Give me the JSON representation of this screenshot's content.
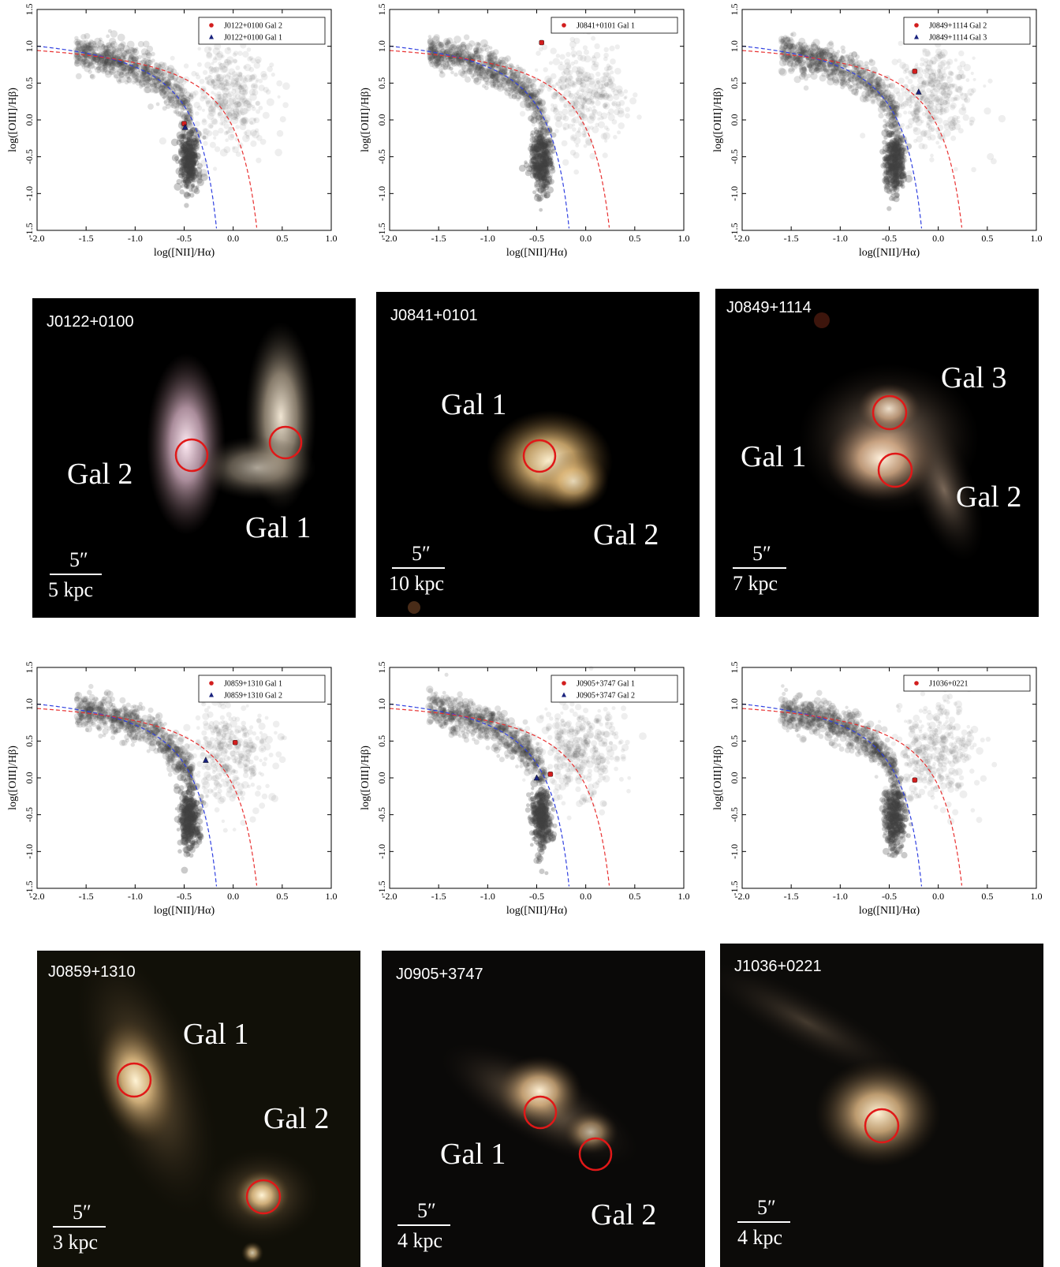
{
  "bpt_panels": [
    {
      "id": "bpt-j0122",
      "xlabel": "log([NII]/Hα)",
      "ylabel": "log([OIII]/Hβ)",
      "legend": [
        "J0122+0100 Gal 2",
        "J0122+0100 Gal 1"
      ]
    },
    {
      "id": "bpt-j0841",
      "xlabel": "log([NII]/Hα)",
      "ylabel": "log([OIII]/Hβ)",
      "legend": [
        "J0841+0101 Gal 1"
      ]
    },
    {
      "id": "bpt-j0849",
      "xlabel": "log([NII]/Hα)",
      "ylabel": "log([OIII]/Hβ)",
      "legend": [
        "J0849+1114 Gal 2",
        "J0849+1114 Gal 3"
      ]
    },
    {
      "id": "bpt-j0859",
      "xlabel": "log([NII]/Hα)",
      "ylabel": "log([OIII]/Hβ)",
      "legend": [
        "J0859+1310 Gal 1",
        "J0859+1310 Gal 2"
      ]
    },
    {
      "id": "bpt-j0905",
      "xlabel": "log([NII]/Hα)",
      "ylabel": "log([OIII]/Hβ)",
      "legend": [
        "J0905+3747 Gal 1",
        "J0905+3747 Gal 2"
      ]
    },
    {
      "id": "bpt-j1036",
      "xlabel": "log([NII]/Hα)",
      "ylabel": "log([OIII]/Hβ)",
      "legend": [
        "J1036+0221"
      ]
    }
  ],
  "chart_data": [
    {
      "type": "scatter",
      "xlabel": "log([NII]/Hα)",
      "ylabel": "log([OIII]/Hβ)",
      "xlim": [
        -2.0,
        1.0
      ],
      "ylim": [
        -1.5,
        1.5
      ],
      "xticks": [
        "-2.0",
        "-1.5",
        "-1.0",
        "-0.5",
        "0.0",
        "0.5",
        "1.0"
      ],
      "yticks": [
        "-1.5",
        "-1.0",
        "-0.5",
        "0.0",
        "0.5",
        "1.0",
        "1.5"
      ],
      "series": [
        {
          "name": "J0122+0100 Gal 2",
          "marker": "circle",
          "color": "#d21e1e",
          "points": [
            [
              -0.5,
              -0.05
            ]
          ]
        },
        {
          "name": "J0122+0100 Gal 1",
          "marker": "triangle",
          "color": "#1a237e",
          "points": [
            [
              -0.49,
              -0.1
            ]
          ]
        }
      ],
      "legend_position": "top-right"
    },
    {
      "type": "scatter",
      "xlabel": "log([NII]/Hα)",
      "ylabel": "log([OIII]/Hβ)",
      "xlim": [
        -2.0,
        1.0
      ],
      "ylim": [
        -1.5,
        1.5
      ],
      "xticks": [
        "-2.0",
        "-1.5",
        "-1.0",
        "-0.5",
        "0.0",
        "0.5",
        "1.0"
      ],
      "yticks": [
        "-1.5",
        "-1.0",
        "-0.5",
        "0.0",
        "0.5",
        "1.0",
        "1.5"
      ],
      "series": [
        {
          "name": "J0841+0101 Gal 1",
          "marker": "circle",
          "color": "#d21e1e",
          "points": [
            [
              -0.45,
              1.05
            ]
          ]
        }
      ],
      "legend_position": "top-right"
    },
    {
      "type": "scatter",
      "xlabel": "log([NII]/Hα)",
      "ylabel": "log([OIII]/Hβ)",
      "xlim": [
        -2.0,
        1.0
      ],
      "ylim": [
        -1.5,
        1.5
      ],
      "xticks": [
        "-2.0",
        "-1.5",
        "-1.0",
        "-0.5",
        "0.0",
        "0.5",
        "1.0"
      ],
      "yticks": [
        "-1.5",
        "-1.0",
        "-0.5",
        "0.0",
        "0.5",
        "1.0",
        "1.5"
      ],
      "series": [
        {
          "name": "J0849+1114 Gal 2",
          "marker": "circle",
          "color": "#d21e1e",
          "points": [
            [
              -0.24,
              0.66
            ]
          ]
        },
        {
          "name": "J0849+1114 Gal 3",
          "marker": "triangle",
          "color": "#1a237e",
          "points": [
            [
              -0.2,
              0.38
            ]
          ]
        }
      ],
      "legend_position": "top-right"
    },
    {
      "type": "scatter",
      "xlabel": "log([NII]/Hα)",
      "ylabel": "log([OIII]/Hβ)",
      "xlim": [
        -2.0,
        1.0
      ],
      "ylim": [
        -1.5,
        1.5
      ],
      "xticks": [
        "-2.0",
        "-1.5",
        "-1.0",
        "-0.5",
        "0.0",
        "0.5",
        "1.0"
      ],
      "yticks": [
        "-1.5",
        "-1.0",
        "-0.5",
        "0.0",
        "0.5",
        "1.0",
        "1.5"
      ],
      "series": [
        {
          "name": "J0859+1310 Gal 1",
          "marker": "circle",
          "color": "#d21e1e",
          "points": [
            [
              0.02,
              0.48
            ]
          ]
        },
        {
          "name": "J0859+1310 Gal 2",
          "marker": "triangle",
          "color": "#1a237e",
          "points": [
            [
              -0.28,
              0.24
            ]
          ]
        }
      ],
      "legend_position": "top-right"
    },
    {
      "type": "scatter",
      "xlabel": "log([NII]/Hα)",
      "ylabel": "log([OIII]/Hβ)",
      "xlim": [
        -2.0,
        1.0
      ],
      "ylim": [
        -1.5,
        1.5
      ],
      "xticks": [
        "-2.0",
        "-1.5",
        "-1.0",
        "-0.5",
        "0.0",
        "0.5",
        "1.0"
      ],
      "yticks": [
        "-1.5",
        "-1.0",
        "-0.5",
        "0.0",
        "0.5",
        "1.0",
        "1.5"
      ],
      "series": [
        {
          "name": "J0905+3747 Gal 1",
          "marker": "circle",
          "color": "#d21e1e",
          "points": [
            [
              -0.36,
              0.05
            ]
          ]
        },
        {
          "name": "J0905+3747 Gal 2",
          "marker": "triangle",
          "color": "#1a237e",
          "points": [
            [
              -0.5,
              0.0
            ]
          ]
        }
      ],
      "legend_position": "top-right"
    },
    {
      "type": "scatter",
      "xlabel": "log([NII]/Hα)",
      "ylabel": "log([OIII]/Hβ)",
      "xlim": [
        -2.0,
        1.0
      ],
      "ylim": [
        -1.5,
        1.5
      ],
      "xticks": [
        "-2.0",
        "-1.5",
        "-1.0",
        "-0.5",
        "0.0",
        "0.5",
        "1.0"
      ],
      "yticks": [
        "-1.5",
        "-1.0",
        "-0.5",
        "0.0",
        "0.5",
        "1.0",
        "1.5"
      ],
      "series": [
        {
          "name": "J1036+0221",
          "marker": "circle",
          "color": "#d21e1e",
          "points": [
            [
              -0.24,
              -0.03
            ]
          ]
        }
      ],
      "legend_position": "top-right"
    }
  ],
  "colors": {
    "kauffmann_line": "#3040e0",
    "kewley_line": "#e83030",
    "aperture_circle": "#e01818",
    "image_background": "#000000",
    "label_text": "#ffffff"
  },
  "image_panels": [
    {
      "name": "J0122+0100",
      "labels": [
        {
          "text": "Gal 2"
        },
        {
          "text": "Gal 1"
        }
      ],
      "scale_angle": "5″",
      "scale_dist": "5 kpc"
    },
    {
      "name": "J0841+0101",
      "labels": [
        {
          "text": "Gal 1"
        },
        {
          "text": "Gal 2"
        }
      ],
      "scale_angle": "5″",
      "scale_dist": "10 kpc"
    },
    {
      "name": "J0849+1114",
      "labels": [
        {
          "text": "Gal 3"
        },
        {
          "text": "Gal 1"
        },
        {
          "text": "Gal 2"
        }
      ],
      "scale_angle": "5″",
      "scale_dist": "7 kpc"
    },
    {
      "name": "J0859+1310",
      "labels": [
        {
          "text": "Gal 1"
        },
        {
          "text": "Gal 2"
        }
      ],
      "scale_angle": "5″",
      "scale_dist": "3 kpc"
    },
    {
      "name": "J0905+3747",
      "labels": [
        {
          "text": "Gal 1"
        },
        {
          "text": "Gal 2"
        }
      ],
      "scale_angle": "5″",
      "scale_dist": "4 kpc"
    },
    {
      "name": "J1036+0221",
      "labels": [],
      "scale_angle": "5″",
      "scale_dist": "4 kpc"
    }
  ]
}
